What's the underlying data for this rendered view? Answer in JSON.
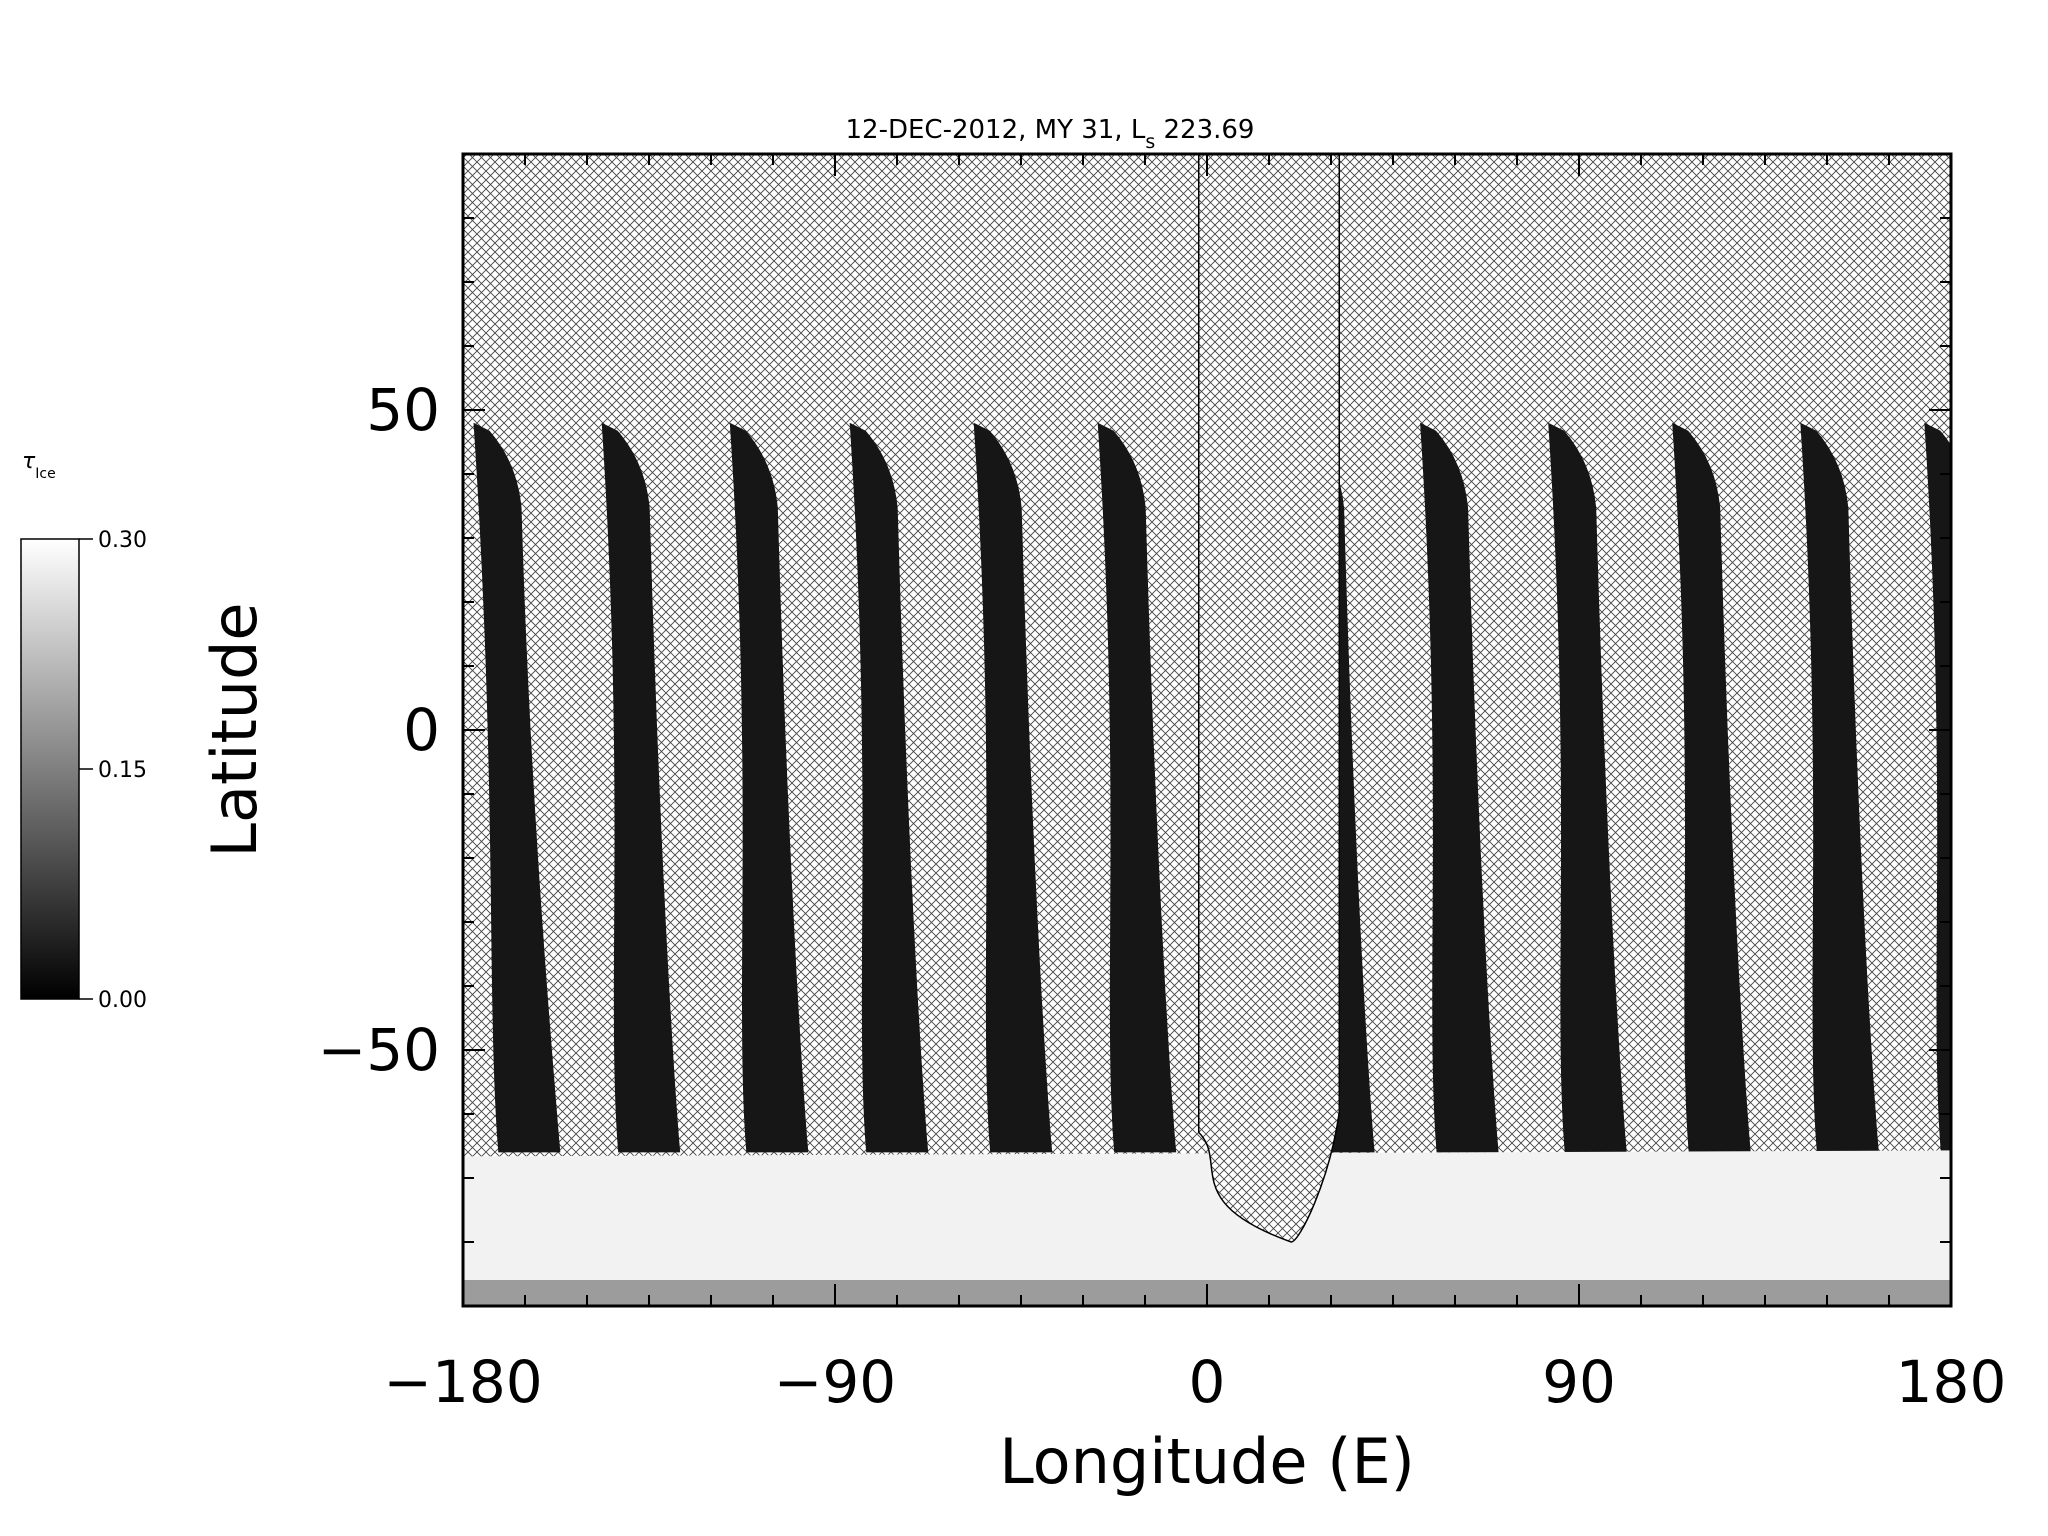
{
  "chart_data": {
    "type": "heatmap",
    "title_main": "12-DEC-2012, MY 31,  L",
    "title_sub": "s",
    "title_value": "223.69",
    "xlabel": "Longitude (E)",
    "ylabel": "Latitude",
    "xlim": [
      -180,
      180
    ],
    "ylim": [
      -90,
      90
    ],
    "x_ticks": [
      {
        "value": -180,
        "label": "−180"
      },
      {
        "value": -90,
        "label": "−90"
      },
      {
        "value": 0,
        "label": "0"
      },
      {
        "value": 90,
        "label": "90"
      },
      {
        "value": 180,
        "label": "180"
      }
    ],
    "y_ticks": [
      {
        "value": -50,
        "label": "−50"
      },
      {
        "value": 0,
        "label": "0"
      },
      {
        "value": 50,
        "label": "50"
      }
    ],
    "colorbar": {
      "symbol": "τ",
      "subscript": "Ice",
      "min": 0.0,
      "max": 0.3,
      "ticks": [
        {
          "value": 0.0,
          "label": "0.00"
        },
        {
          "value": 0.15,
          "label": "0.15"
        },
        {
          "value": 0.3,
          "label": "0.30"
        }
      ],
      "colormap": "grayscale"
    },
    "no_data_hatch": true,
    "swaths": [
      {
        "top_lon": -176,
        "top_lat": 48,
        "bottom_lon": -170,
        "bottom_lat": -66
      },
      {
        "top_lon": -145,
        "top_lat": 48,
        "bottom_lon": -141,
        "bottom_lat": -66
      },
      {
        "top_lon": -114,
        "top_lat": 48,
        "bottom_lon": -110,
        "bottom_lat": -66
      },
      {
        "top_lon": -85,
        "top_lat": 48,
        "bottom_lon": -81,
        "bottom_lat": -66
      },
      {
        "top_lon": -55,
        "top_lat": 48,
        "bottom_lon": -51,
        "bottom_lat": -66
      },
      {
        "top_lon": -25,
        "top_lat": 48,
        "bottom_lon": -21,
        "bottom_lat": -66
      },
      {
        "top_lon": 23,
        "top_lat": 48,
        "bottom_lon": 27,
        "bottom_lat": -66
      },
      {
        "top_lon": 53,
        "top_lat": 48,
        "bottom_lon": 57,
        "bottom_lat": -66
      },
      {
        "top_lon": 84,
        "top_lat": 48,
        "bottom_lon": 88,
        "bottom_lat": -66
      },
      {
        "top_lon": 114,
        "top_lat": 48,
        "bottom_lon": 118,
        "bottom_lat": -66
      },
      {
        "top_lon": 145,
        "top_lat": 48,
        "bottom_lon": 149,
        "bottom_lat": -66
      },
      {
        "top_lon": 175,
        "top_lat": 48,
        "bottom_lon": 179,
        "bottom_lat": -66
      }
    ],
    "polar_band": {
      "lat_top": -66,
      "lat_bottom": -90,
      "tau": 0.3
    },
    "gap_lobe": {
      "lon_left": -2,
      "lon_right": 32,
      "lat_bottom": -80
    }
  }
}
